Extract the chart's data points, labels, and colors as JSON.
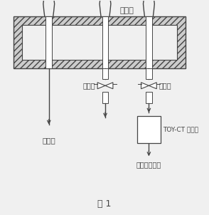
{
  "title": "图 1",
  "label_fuel_tank": "燃油箱",
  "label_exhaust_valve": "排空阀",
  "label_signal_valve": "信号阀",
  "label_nitrogen_in": "氮气进",
  "label_nitrogen_out": "氮气、氧气出",
  "label_device": "TOY-CT 透氧仪",
  "bg_color": "#f0f0f0",
  "line_color": "#444444",
  "box_fill": "#ffffff",
  "hatch_color": "#888888"
}
